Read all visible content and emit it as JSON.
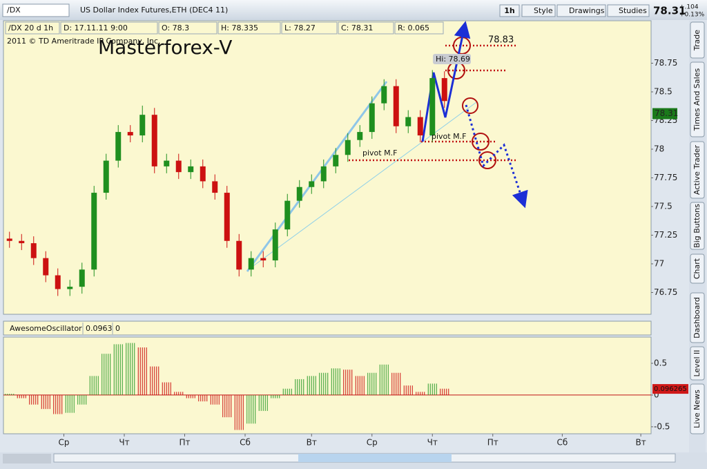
{
  "header": {
    "symbol": "/DX",
    "description": "US Dollar Index Futures,ETH (DEC4 11)",
    "aggregation": "1h",
    "buttons": [
      "Style",
      "Drawings",
      "Studies"
    ],
    "last": 78.31,
    "net_change": "+.104",
    "pct_change": "+0.13%"
  },
  "info_bar": [
    "/DX 20 d 1h",
    "D: 17.11.11 9:00",
    "O: 78.3",
    "H: 78.335",
    "L: 78.27",
    "C: 78.31",
    "R: 0.065"
  ],
  "side_tabs": [
    "Trade",
    "Times And Sales",
    "Active Trader",
    "Big Buttons",
    "Chart",
    "Dashboard",
    "Level II",
    "Live News"
  ],
  "chart_data": [
    {
      "type": "candlestick",
      "copyright": "2011 © TD Ameritrade IP Company, Inc.",
      "watermark": "Masterforex-V",
      "annotations": [
        "pivot M.F",
        "pivot M.F",
        "Hi: 78.69",
        "78.83"
      ],
      "x": [
        0.1,
        0.3,
        0.5,
        0.7,
        0.9,
        1.1,
        1.3,
        1.5,
        1.7,
        1.9,
        2.1,
        2.3,
        2.5,
        2.7,
        2.9,
        3.1,
        3.3,
        3.5,
        3.7,
        3.9,
        4.1,
        4.3,
        4.5,
        4.7,
        4.9,
        5.1,
        5.3,
        5.5,
        5.7,
        5.9,
        6.1,
        6.3,
        6.5,
        6.7,
        6.9,
        7.1,
        7.3
      ],
      "open": [
        77.22,
        77.2,
        77.18,
        77.05,
        76.9,
        76.78,
        76.8,
        76.95,
        77.62,
        77.9,
        78.15,
        78.12,
        78.3,
        77.85,
        77.9,
        77.8,
        77.85,
        77.72,
        77.62,
        77.2,
        76.95,
        77.05,
        77.03,
        77.3,
        77.55,
        77.67,
        77.72,
        77.85,
        77.95,
        78.08,
        78.15,
        78.4,
        78.55,
        78.2,
        78.28,
        78.12,
        78.62
      ],
      "high": [
        77.28,
        77.26,
        77.24,
        77.11,
        76.96,
        76.86,
        77.01,
        77.68,
        77.96,
        78.21,
        78.21,
        78.38,
        78.36,
        77.96,
        77.96,
        77.91,
        77.91,
        77.78,
        77.68,
        77.26,
        77.11,
        77.11,
        77.36,
        77.61,
        77.73,
        77.78,
        77.91,
        78.01,
        78.14,
        78.21,
        78.46,
        78.61,
        78.61,
        78.34,
        78.34,
        78.69,
        78.68
      ],
      "low": [
        77.14,
        77.12,
        76.99,
        76.84,
        76.72,
        76.72,
        76.74,
        76.89,
        77.56,
        77.84,
        78.06,
        78.06,
        77.79,
        77.79,
        77.74,
        77.74,
        77.66,
        77.56,
        77.14,
        76.89,
        76.89,
        76.97,
        76.97,
        77.24,
        77.49,
        77.61,
        77.66,
        77.79,
        77.89,
        78.02,
        78.09,
        78.34,
        78.14,
        78.14,
        78.06,
        78.06,
        78.36
      ],
      "close": [
        77.2,
        77.18,
        77.05,
        76.9,
        76.78,
        76.8,
        76.95,
        77.62,
        77.9,
        78.15,
        78.12,
        78.3,
        77.85,
        77.9,
        77.8,
        77.85,
        77.72,
        77.62,
        77.2,
        76.95,
        77.05,
        77.03,
        77.3,
        77.55,
        77.67,
        77.72,
        77.85,
        77.95,
        78.08,
        78.15,
        78.4,
        78.55,
        78.2,
        78.28,
        78.12,
        78.62,
        78.42
      ],
      "up_color": "#1f8f1f",
      "down_color": "#cc1111",
      "xlim": [
        0,
        10.72
      ],
      "xticks": [
        {
          "value": 1,
          "label": "Ср"
        },
        {
          "value": 2,
          "label": "Чт"
        },
        {
          "value": 3,
          "label": "Пт"
        },
        {
          "value": 4,
          "label": "Сб"
        },
        {
          "value": 5.1,
          "label": "Вт"
        },
        {
          "value": 6.1,
          "label": "Ср"
        },
        {
          "value": 7.1,
          "label": "Чт"
        },
        {
          "value": 8.1,
          "label": "Пт"
        },
        {
          "value": 9.25,
          "label": "Сб"
        },
        {
          "value": 10.55,
          "label": "Вт"
        }
      ],
      "ylim": [
        76.56,
        79.0
      ],
      "yticks": [
        76.75,
        77,
        77.25,
        77.5,
        77.75,
        78,
        78.25,
        78.5,
        78.75
      ]
    },
    {
      "type": "bar",
      "title": "AwesomeOscillator",
      "study_values": [
        0.0963,
        0
      ],
      "last_value": 0.096265,
      "values": [
        0.02,
        -0.05,
        -0.15,
        -0.22,
        -0.3,
        -0.28,
        -0.15,
        0.3,
        0.65,
        0.8,
        0.82,
        0.75,
        0.45,
        0.2,
        0.05,
        -0.05,
        -0.1,
        -0.15,
        -0.35,
        -0.55,
        -0.45,
        -0.25,
        -0.05,
        0.1,
        0.25,
        0.3,
        0.35,
        0.42,
        0.4,
        0.3,
        0.35,
        0.48,
        0.35,
        0.15,
        0.05,
        0.18,
        0.1
      ],
      "up_color": "#2c9c2c",
      "down_color": "#cc1111",
      "ylim": [
        -0.61,
        0.913
      ],
      "yticks": [
        0.5,
        0,
        -0.5
      ]
    }
  ]
}
